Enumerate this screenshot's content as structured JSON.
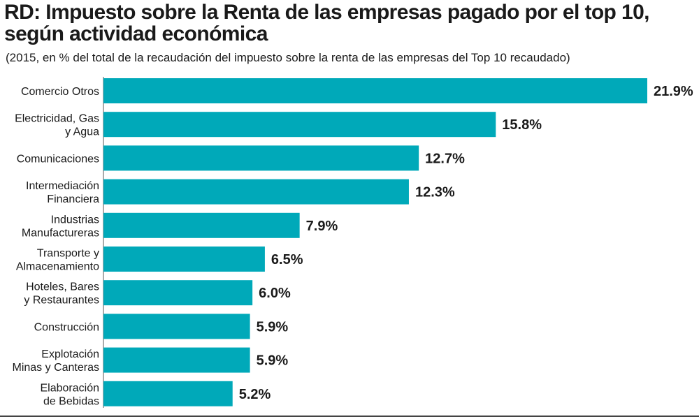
{
  "title": "RD: Impuesto sobre la Renta de las empresas pagado por el top 10, según actividad económica",
  "subtitle": "(2015, en % del total de la recaudación del  impuesto sobre la renta de las empresas del Top 10 recaudado)",
  "colors": {
    "bar": "#00a9b9",
    "text": "#1a1a1a",
    "axis": "#555555"
  },
  "chart_data": {
    "type": "bar",
    "orientation": "horizontal",
    "categories": [
      [
        "Comercio Otros"
      ],
      [
        "Electricidad, Gas",
        "y Agua"
      ],
      [
        "Comunicaciones"
      ],
      [
        "Intermediación",
        "Financiera"
      ],
      [
        "Industrias",
        "Manufactureras"
      ],
      [
        "Transporte y",
        "Almacenamiento"
      ],
      [
        "Hoteles, Bares",
        "y Restaurantes"
      ],
      [
        "Construcción"
      ],
      [
        "Explotación",
        "Minas y Canteras"
      ],
      [
        "Elaboración",
        "de Bebidas"
      ]
    ],
    "values": [
      21.9,
      15.8,
      12.7,
      12.3,
      7.9,
      6.5,
      6.0,
      5.9,
      5.9,
      5.2
    ],
    "value_labels": [
      "21.9%",
      "15.8%",
      "12.7%",
      "12.3%",
      "7.9%",
      "6.5%",
      "6.0%",
      "5.9%",
      "5.9%",
      "5.2%"
    ],
    "xlim": [
      0,
      21.9
    ],
    "grid": false,
    "legend": "none"
  }
}
